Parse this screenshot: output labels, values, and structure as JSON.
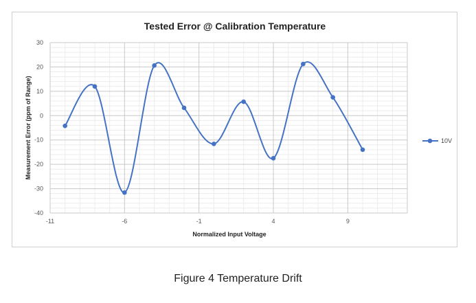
{
  "chart_data": {
    "type": "line",
    "title": "Tested Error @ Calibration Temperature",
    "xlabel": "Normalized Input Voltage",
    "ylabel": "Measurement Error  (ppm of Range)",
    "xlim": [
      -11,
      13
    ],
    "ylim": [
      -40,
      30
    ],
    "xticks": [
      -11,
      -6,
      -1,
      4,
      9
    ],
    "yticks": [
      -40,
      -30,
      -20,
      -10,
      0,
      10,
      20,
      30
    ],
    "grid": true,
    "legend": "right",
    "smooth": true,
    "series": [
      {
        "name": "10V",
        "color": "#4472C4",
        "x": [
          -10,
          -8,
          -6,
          -4,
          -2,
          0,
          2,
          4,
          6,
          8,
          10
        ],
        "y": [
          -4.2,
          12,
          -31.6,
          20.6,
          3.2,
          -11.6,
          5.7,
          -17.5,
          21.2,
          7.5,
          -14
        ]
      }
    ]
  },
  "caption": "Figure 4 Temperature Drift"
}
